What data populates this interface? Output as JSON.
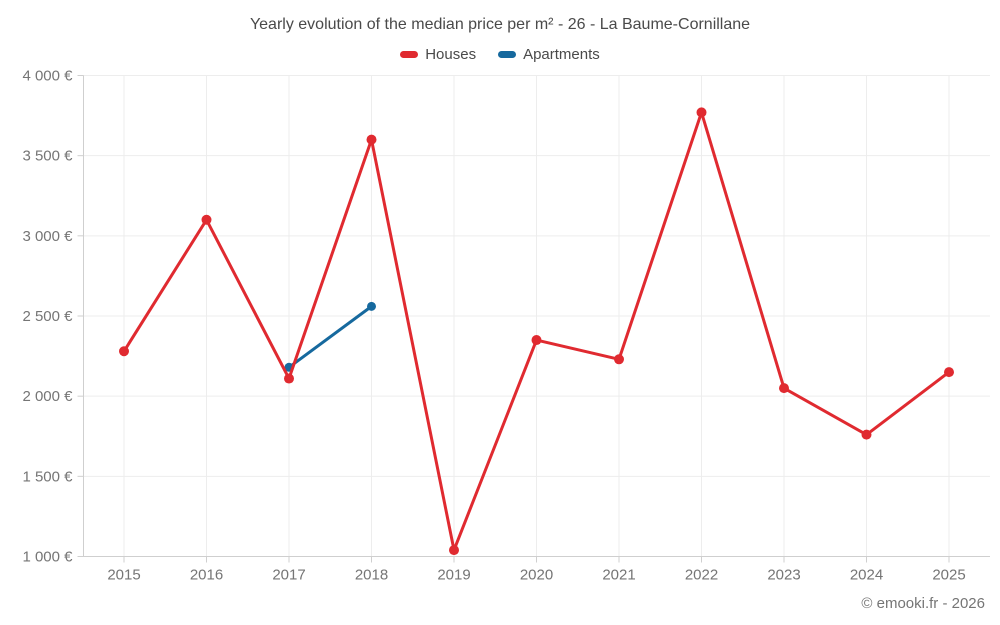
{
  "header": {
    "title": "Yearly evolution of the median price per m² - 26 - La Baume-Cornillane"
  },
  "legend": {
    "items": [
      {
        "label": "Houses",
        "color": "#e02a30"
      },
      {
        "label": "Apartments",
        "color": "#16699e"
      }
    ]
  },
  "footer": {
    "credit": "© emooki.fr - 2026"
  },
  "chart_data": {
    "type": "line",
    "title": "Yearly evolution of the median price per m² - 26 - La Baume-Cornillane",
    "xlabel": "",
    "ylabel": "",
    "categories": [
      "2015",
      "2016",
      "2017",
      "2018",
      "2019",
      "2020",
      "2021",
      "2022",
      "2023",
      "2024",
      "2025"
    ],
    "series": [
      {
        "name": "Houses",
        "color": "#e02a30",
        "line_width": 3,
        "point_radius": 5,
        "values": [
          2280,
          3100,
          2110,
          3600,
          1040,
          2350,
          2230,
          3770,
          2050,
          1760,
          2150
        ]
      },
      {
        "name": "Apartments",
        "color": "#16699e",
        "line_width": 3,
        "point_radius": 4.5,
        "values": [
          null,
          null,
          2180,
          2560,
          null,
          null,
          null,
          null,
          null,
          null,
          null
        ]
      }
    ],
    "ylim": [
      1000,
      4000
    ],
    "yticks": [
      1000,
      1500,
      2000,
      2500,
      3000,
      3500,
      4000
    ],
    "ytick_labels": [
      "1 000 €",
      "1 500 €",
      "2 000 €",
      "2 500 €",
      "3 000 €",
      "3 500 €",
      "4 000 €"
    ],
    "currency": "€",
    "grid": true,
    "grid_color": "#ededed",
    "axis_color": "#cfcfcf",
    "legend_position": "top"
  }
}
